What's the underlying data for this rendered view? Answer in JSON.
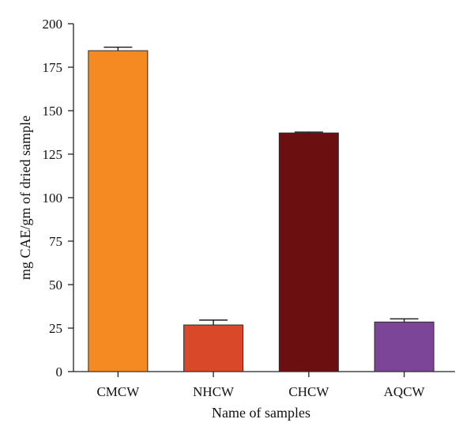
{
  "chart_data": {
    "type": "bar",
    "categories": [
      "CMCW",
      "NHCW",
      "CHCW",
      "AQCW"
    ],
    "values": [
      184.5,
      26.8,
      137.2,
      28.5
    ],
    "errors": [
      2.0,
      2.8,
      0.5,
      1.8
    ],
    "colors": [
      "#F58A22",
      "#D94828",
      "#6B0F10",
      "#7D4597"
    ],
    "title": "",
    "xlabel": "Name of samples",
    "ylabel": "mg CAE/gm of dried sample",
    "ylim": [
      0,
      200
    ],
    "yticks": [
      0,
      25,
      50,
      75,
      100,
      125,
      150,
      175,
      200
    ],
    "grid": false,
    "legend": "none"
  }
}
